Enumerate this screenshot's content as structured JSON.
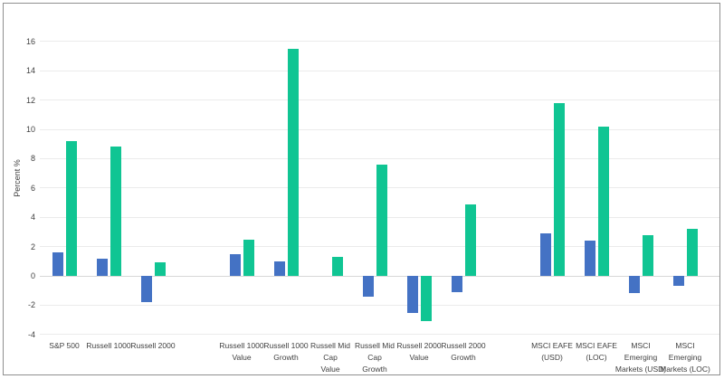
{
  "chart_data": {
    "type": "bar",
    "title": "",
    "xlabel": "",
    "ylabel": "Percent %",
    "ylim": [
      -4,
      16
    ],
    "yticks": [
      16,
      14,
      12,
      10,
      8,
      6,
      4,
      2,
      0,
      -2,
      -4
    ],
    "grid": true,
    "legend_position": "none",
    "categories": [
      "S&P 500",
      "Russell 1000",
      "Russell 2000",
      "Russell 1000 Value",
      "Russell 1000 Growth",
      "Russell Mid Cap Value",
      "Russell Mid Cap Growth",
      "Russell 2000 Value",
      "Russell 2000 Growth",
      "MSCI EAFE (USD)",
      "MSCI EAFE (LOC)",
      "MSCI Emerging Markets (USD)",
      "MSCI Emerging Markets (LOC)"
    ],
    "category_labels": [
      "S&P 500",
      "Russell 1000",
      "Russell 2000",
      "Russell 1000\nValue",
      "Russell 1000\nGrowth",
      "Russell Mid Cap\nValue",
      "Russell Mid Cap\nGrowth",
      "Russell 2000\nValue",
      "Russell 2000\nGrowth",
      "MSCI EAFE\n(USD)",
      "MSCI EAFE\n(LOC)",
      "MSCI Emerging\nMarkets (USD)",
      "MSCI Emerging\nMarkets (LOC)"
    ],
    "slot_indices": [
      0,
      1,
      2,
      4,
      5,
      6,
      7,
      8,
      9,
      11,
      12,
      13,
      14
    ],
    "total_slots": 15,
    "series": [
      {
        "name": "blue",
        "color": "#4472C4",
        "values": [
          1.6,
          1.2,
          -1.8,
          1.5,
          1.0,
          0,
          -1.4,
          -2.5,
          -1.1,
          2.9,
          2.4,
          -1.2,
          -0.7
        ]
      },
      {
        "name": "green",
        "color": "#10C593",
        "values": [
          9.2,
          8.8,
          0.9,
          2.5,
          15.5,
          1.3,
          7.6,
          -3.1,
          4.9,
          11.8,
          10.2,
          2.8,
          3.2
        ]
      }
    ]
  }
}
